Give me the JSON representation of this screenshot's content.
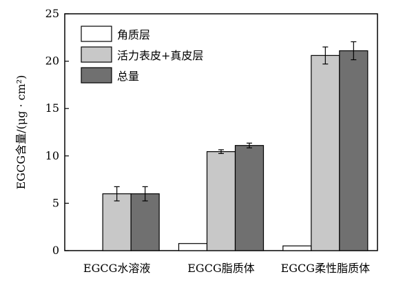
{
  "chart_data": {
    "type": "bar",
    "categories": [
      "EGCG水溶液",
      "EGCG脂质体",
      "EGCG柔性脂质体"
    ],
    "series": [
      {
        "name": "角质层",
        "values": [
          0,
          0.75,
          0.5
        ],
        "error": [
          0,
          0,
          0
        ],
        "color": "#ffffff"
      },
      {
        "name": "活力表皮+真皮层",
        "values": [
          6.0,
          10.45,
          20.6
        ],
        "error": [
          0.75,
          0.2,
          0.9
        ],
        "color": "#c8c8c8"
      },
      {
        "name": "总量",
        "values": [
          6.0,
          11.1,
          21.1
        ],
        "error": [
          0.75,
          0.25,
          0.95
        ],
        "color": "#707070"
      }
    ],
    "ylabel": "EGCG含量/(μg · cm²)",
    "xlabel": "",
    "ylim": [
      0,
      25
    ],
    "yticks": [
      0,
      5,
      10,
      15,
      20,
      25
    ],
    "legend_position": "top-left",
    "grid": false
  }
}
